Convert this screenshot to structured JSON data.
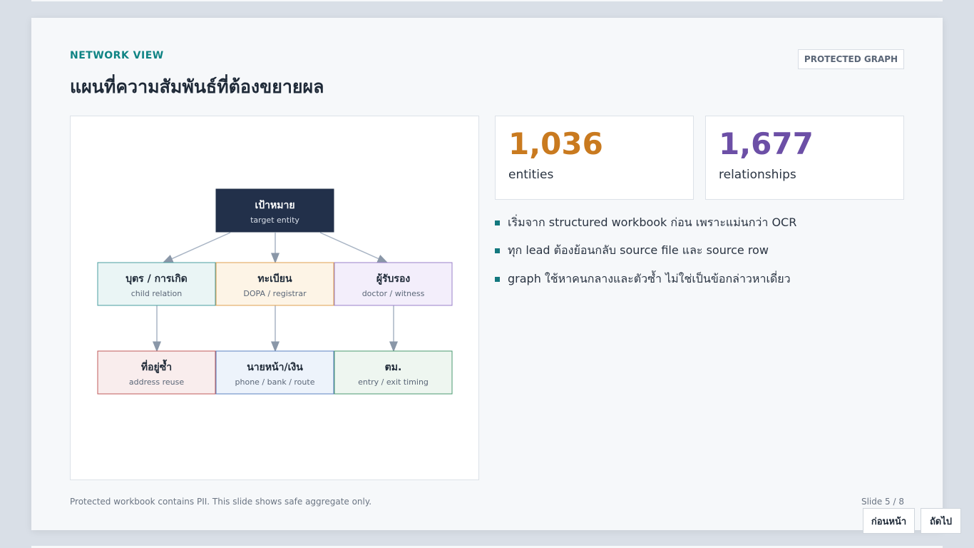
{
  "header": {
    "eyebrow": "NETWORK VIEW",
    "title": "แผนที่ความสัมพันธ์ที่ต้องขยายผล",
    "badge": "PROTECTED GRAPH"
  },
  "diagram": {
    "nodes": [
      {
        "label": "เป้าหมาย",
        "sub": "target entity"
      },
      {
        "label": "บุตร / การเกิด",
        "sub": "child relation"
      },
      {
        "label": "ทะเบียน",
        "sub": "DOPA / registrar"
      },
      {
        "label": "ผู้รับรอง",
        "sub": "doctor / witness"
      },
      {
        "label": "ที่อยู่ซ้ำ",
        "sub": "address reuse"
      },
      {
        "label": "นายหน้า/เงิน",
        "sub": "phone / bank / route"
      },
      {
        "label": "ตม.",
        "sub": "entry / exit timing"
      }
    ]
  },
  "stats": [
    {
      "value": "1,036",
      "label": "entities"
    },
    {
      "value": "1,677",
      "label": "relationships"
    }
  ],
  "bullets": [
    "เริ่มจาก structured workbook ก่อน เพราะแม่นกว่า OCR",
    "ทุก lead ต้องย้อนกลับ source file และ source row",
    "graph ใช้หาคนกลางและตัวซ้ำ ไม่ใช่เป็นข้อกล่าวหาเดี่ยว"
  ],
  "footer": {
    "note": "Protected workbook contains PII. This slide shows safe aggregate only.",
    "slide": "Slide 5 / 8"
  },
  "nav": {
    "prev": "ก่อนหน้า",
    "next": "ถัดไป"
  }
}
